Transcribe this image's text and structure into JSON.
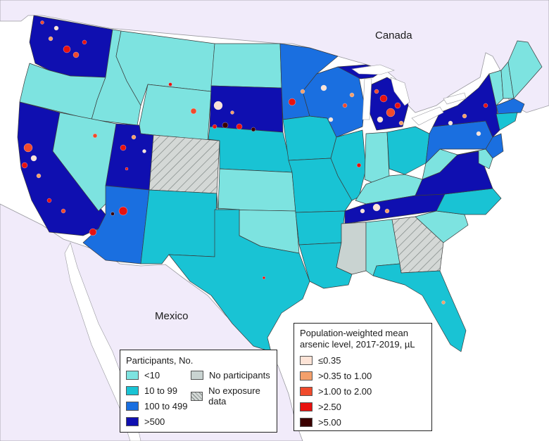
{
  "labels": {
    "canada": "Canada",
    "mexico": "Mexico"
  },
  "participants_legend": {
    "title": "Participants, No.",
    "items": [
      {
        "label": "<10",
        "color": "#7de3e0"
      },
      {
        "label": "10 to 99",
        "color": "#19c3d4"
      },
      {
        "label": "100 to 499",
        "color": "#1a6fe0"
      },
      {
        "label": ">500",
        "color": "#0f0fb0"
      },
      {
        "label": "No participants",
        "color": "#c9d3d1"
      },
      {
        "label": "No exposure data",
        "color": "hatch"
      }
    ]
  },
  "arsenic_legend": {
    "title_line1": "Population-weighted mean",
    "title_line2": "arsenic level, 2017-2019, µL",
    "items": [
      {
        "label": "≤0.35",
        "color": "#fde3d6"
      },
      {
        "label": ">0.35 to 1.00",
        "color": "#f4a06b"
      },
      {
        "label": ">1.00 to 2.00",
        "color": "#f04a2c"
      },
      {
        "label": ">2.50",
        "color": "#e8110f"
      },
      {
        "label": ">5.00",
        "color": "#3b0000"
      }
    ]
  },
  "colors": {
    "background_land": "#f1ebfa",
    "water": "#ffffff",
    "lt10": "#7de3e0",
    "r10_99": "#19c3d4",
    "r100_499": "#1a6fe0",
    "gt500": "#0f0fb0",
    "none": "#c9d3d1"
  }
}
